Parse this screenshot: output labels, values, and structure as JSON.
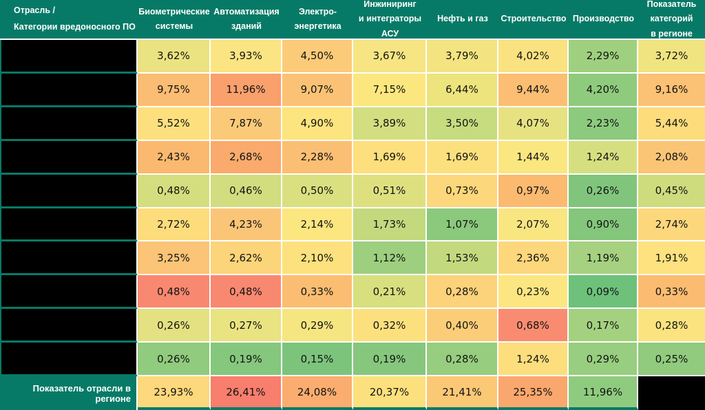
{
  "table": {
    "corner_header": "Отрасль /\nКатегории вредоносного ПО",
    "columns": [
      "Биометрические\nсистемы",
      "Автоматизация\nзданий",
      "Электро-\nэнергетика",
      "Инжиниринг\nи интеграторы\nАСУ",
      "Нефть и газ",
      "Строительство",
      "Производство",
      "Показатель\nкатегорий\nв регионе"
    ],
    "rows": [
      {
        "label": "",
        "redacted": true,
        "cells": [
          {
            "text": "3,62%",
            "color": "#EBE381"
          },
          {
            "text": "3,93%",
            "color": "#FBE583"
          },
          {
            "text": "4,50%",
            "color": "#FCCB79"
          },
          {
            "text": "3,67%",
            "color": "#F6E582"
          },
          {
            "text": "3,79%",
            "color": "#F3E481"
          },
          {
            "text": "4,02%",
            "color": "#FAE281"
          },
          {
            "text": "2,29%",
            "color": "#9FD07F"
          },
          {
            "text": "3,72%",
            "color": "#F0E481"
          }
        ]
      },
      {
        "label": "",
        "redacted": true,
        "cells": [
          {
            "text": "9,75%",
            "color": "#FBBC73"
          },
          {
            "text": "11,96%",
            "color": "#F9A06D"
          },
          {
            "text": "9,07%",
            "color": "#FBC275"
          },
          {
            "text": "7,15%",
            "color": "#FCE77F"
          },
          {
            "text": "6,44%",
            "color": "#EDE47E"
          },
          {
            "text": "9,44%",
            "color": "#FBBE73"
          },
          {
            "text": "4,20%",
            "color": "#8FCB7D"
          },
          {
            "text": "9,16%",
            "color": "#FBC174"
          }
        ]
      },
      {
        "label": "",
        "redacted": true,
        "cells": [
          {
            "text": "5,52%",
            "color": "#FDE07D"
          },
          {
            "text": "7,87%",
            "color": "#FBCA78"
          },
          {
            "text": "4,90%",
            "color": "#FCE47E"
          },
          {
            "text": "3,89%",
            "color": "#D3DE80"
          },
          {
            "text": "3,50%",
            "color": "#C7DB7F"
          },
          {
            "text": "4,07%",
            "color": "#E7E281"
          },
          {
            "text": "2,23%",
            "color": "#8CCA7D"
          },
          {
            "text": "5,44%",
            "color": "#FDDC7C"
          }
        ]
      },
      {
        "label": "",
        "redacted": true,
        "cells": [
          {
            "text": "2,43%",
            "color": "#FBB970"
          },
          {
            "text": "2,68%",
            "color": "#FAAA6D"
          },
          {
            "text": "2,28%",
            "color": "#FBBF73"
          },
          {
            "text": "1,69%",
            "color": "#FDDF7D"
          },
          {
            "text": "1,69%",
            "color": "#FDE07E"
          },
          {
            "text": "1,44%",
            "color": "#FAE780"
          },
          {
            "text": "1,24%",
            "color": "#D6DF80"
          },
          {
            "text": "2,08%",
            "color": "#FBC576"
          }
        ]
      },
      {
        "label": "",
        "redacted": true,
        "cells": [
          {
            "text": "0,48%",
            "color": "#D5DE7E"
          },
          {
            "text": "0,46%",
            "color": "#D1DD7E"
          },
          {
            "text": "0,50%",
            "color": "#DADF7F"
          },
          {
            "text": "0,51%",
            "color": "#DEE080"
          },
          {
            "text": "0,73%",
            "color": "#FDD77B"
          },
          {
            "text": "0,97%",
            "color": "#FBBA6F"
          },
          {
            "text": "0,26%",
            "color": "#81C57C"
          },
          {
            "text": "0,45%",
            "color": "#CEDC7E"
          }
        ]
      },
      {
        "label": "",
        "redacted": true,
        "cells": [
          {
            "text": "2,72%",
            "color": "#FDDC7C"
          },
          {
            "text": "4,23%",
            "color": "#FBC577"
          },
          {
            "text": "2,14%",
            "color": "#FCE680"
          },
          {
            "text": "1,73%",
            "color": "#C3D97E"
          },
          {
            "text": "1,07%",
            "color": "#8BC97D"
          },
          {
            "text": "2,07%",
            "color": "#F9E680"
          },
          {
            "text": "0,90%",
            "color": "#84C67C"
          },
          {
            "text": "2,74%",
            "color": "#FDD77B"
          }
        ]
      },
      {
        "label": "",
        "redacted": true,
        "cells": [
          {
            "text": "3,25%",
            "color": "#FBC476"
          },
          {
            "text": "2,62%",
            "color": "#FCD47A"
          },
          {
            "text": "2,10%",
            "color": "#FDE17E"
          },
          {
            "text": "1,12%",
            "color": "#9DCF7F"
          },
          {
            "text": "1,53%",
            "color": "#C2D97E"
          },
          {
            "text": "2,36%",
            "color": "#FDD77C"
          },
          {
            "text": "1,19%",
            "color": "#A6D180"
          },
          {
            "text": "1,91%",
            "color": "#FDE27F"
          }
        ]
      },
      {
        "label": "",
        "redacted": true,
        "cells": [
          {
            "text": "0,48%",
            "color": "#F98871"
          },
          {
            "text": "0,48%",
            "color": "#F98871"
          },
          {
            "text": "0,33%",
            "color": "#FBBD72"
          },
          {
            "text": "0,21%",
            "color": "#D7DF7F"
          },
          {
            "text": "0,28%",
            "color": "#FCD27A"
          },
          {
            "text": "0,23%",
            "color": "#FBE681"
          },
          {
            "text": "0,09%",
            "color": "#6DC17B"
          },
          {
            "text": "0,33%",
            "color": "#FBBC71"
          }
        ]
      },
      {
        "label": "",
        "redacted": true,
        "cells": [
          {
            "text": "0,26%",
            "color": "#E3E181"
          },
          {
            "text": "0,27%",
            "color": "#E9E382"
          },
          {
            "text": "0,29%",
            "color": "#F5E681"
          },
          {
            "text": "0,32%",
            "color": "#FDE07E"
          },
          {
            "text": "0,40%",
            "color": "#FCCD78"
          },
          {
            "text": "0,68%",
            "color": "#F98C70"
          },
          {
            "text": "0,17%",
            "color": "#A4D180"
          },
          {
            "text": "0,28%",
            "color": "#FBE380"
          }
        ]
      },
      {
        "label": "",
        "redacted": true,
        "cells": [
          {
            "text": "0,26%",
            "color": "#90CB7E"
          },
          {
            "text": "0,19%",
            "color": "#85C77D"
          },
          {
            "text": "0,15%",
            "color": "#7CC47C"
          },
          {
            "text": "0,19%",
            "color": "#86C77D"
          },
          {
            "text": "0,28%",
            "color": "#97CD7E"
          },
          {
            "text": "1,24%",
            "color": "#FDDE7D"
          },
          {
            "text": "0,29%",
            "color": "#98CE7F"
          },
          {
            "text": "0,25%",
            "color": "#90CB7E"
          }
        ]
      }
    ],
    "footer": {
      "label": "Показатель отрасли в регионе",
      "cells": [
        {
          "text": "23,93%",
          "color": "#FDD87C"
        },
        {
          "text": "26,41%",
          "color": "#F87E6D"
        },
        {
          "text": "24,08%",
          "color": "#FAAD6F"
        },
        {
          "text": "20,37%",
          "color": "#FDE07E"
        },
        {
          "text": "21,41%",
          "color": "#FBC876"
        },
        {
          "text": "25,35%",
          "color": "#FAA76E"
        },
        {
          "text": "11,96%",
          "color": "#8FCB7E"
        },
        {
          "text": "",
          "color": "#000000",
          "redacted": true
        }
      ]
    },
    "colors": {
      "header_teal": "#077A67",
      "gridline_white": "#FFFFFF",
      "redacted_black": "#000000"
    }
  },
  "chart_data": {
    "type": "heatmap",
    "title": "",
    "columns": [
      "Биометрические системы",
      "Автоматизация зданий",
      "Электроэнергетика",
      "Инжиниринг и интеграторы АСУ",
      "Нефть и газ",
      "Строительство",
      "Производство",
      "Показатель категорий в регионе"
    ],
    "row_labels": [
      "",
      "",
      "",
      "",
      "",
      "",
      "",
      "",
      "",
      ""
    ],
    "row_labels_redacted": true,
    "values": [
      [
        3.62,
        3.93,
        4.5,
        3.67,
        3.79,
        4.02,
        2.29,
        3.72
      ],
      [
        9.75,
        11.96,
        9.07,
        7.15,
        6.44,
        9.44,
        4.2,
        9.16
      ],
      [
        5.52,
        7.87,
        4.9,
        3.89,
        3.5,
        4.07,
        2.23,
        5.44
      ],
      [
        2.43,
        2.68,
        2.28,
        1.69,
        1.69,
        1.44,
        1.24,
        2.08
      ],
      [
        0.48,
        0.46,
        0.5,
        0.51,
        0.73,
        0.97,
        0.26,
        0.45
      ],
      [
        2.72,
        4.23,
        2.14,
        1.73,
        1.07,
        2.07,
        0.9,
        2.74
      ],
      [
        3.25,
        2.62,
        2.1,
        1.12,
        1.53,
        2.36,
        1.19,
        1.91
      ],
      [
        0.48,
        0.48,
        0.33,
        0.21,
        0.28,
        0.23,
        0.09,
        0.33
      ],
      [
        0.26,
        0.27,
        0.29,
        0.32,
        0.4,
        0.68,
        0.17,
        0.28
      ],
      [
        0.26,
        0.19,
        0.15,
        0.19,
        0.28,
        1.24,
        0.29,
        0.25
      ]
    ],
    "footer_row": {
      "label": "Показатель отрасли в регионе",
      "values": [
        23.93,
        26.41,
        24.08,
        20.37,
        21.41,
        25.35,
        11.96,
        null
      ]
    },
    "value_unit": "%",
    "decimal_separator": ",",
    "color_scale": {
      "low": "#63BE7B",
      "mid": "#FFEB84",
      "high": "#F8696B",
      "scale_scope": "per-row"
    },
    "layout": {
      "gridlines": "white",
      "header_background": "#077A67",
      "redacted_cells": "black"
    }
  }
}
